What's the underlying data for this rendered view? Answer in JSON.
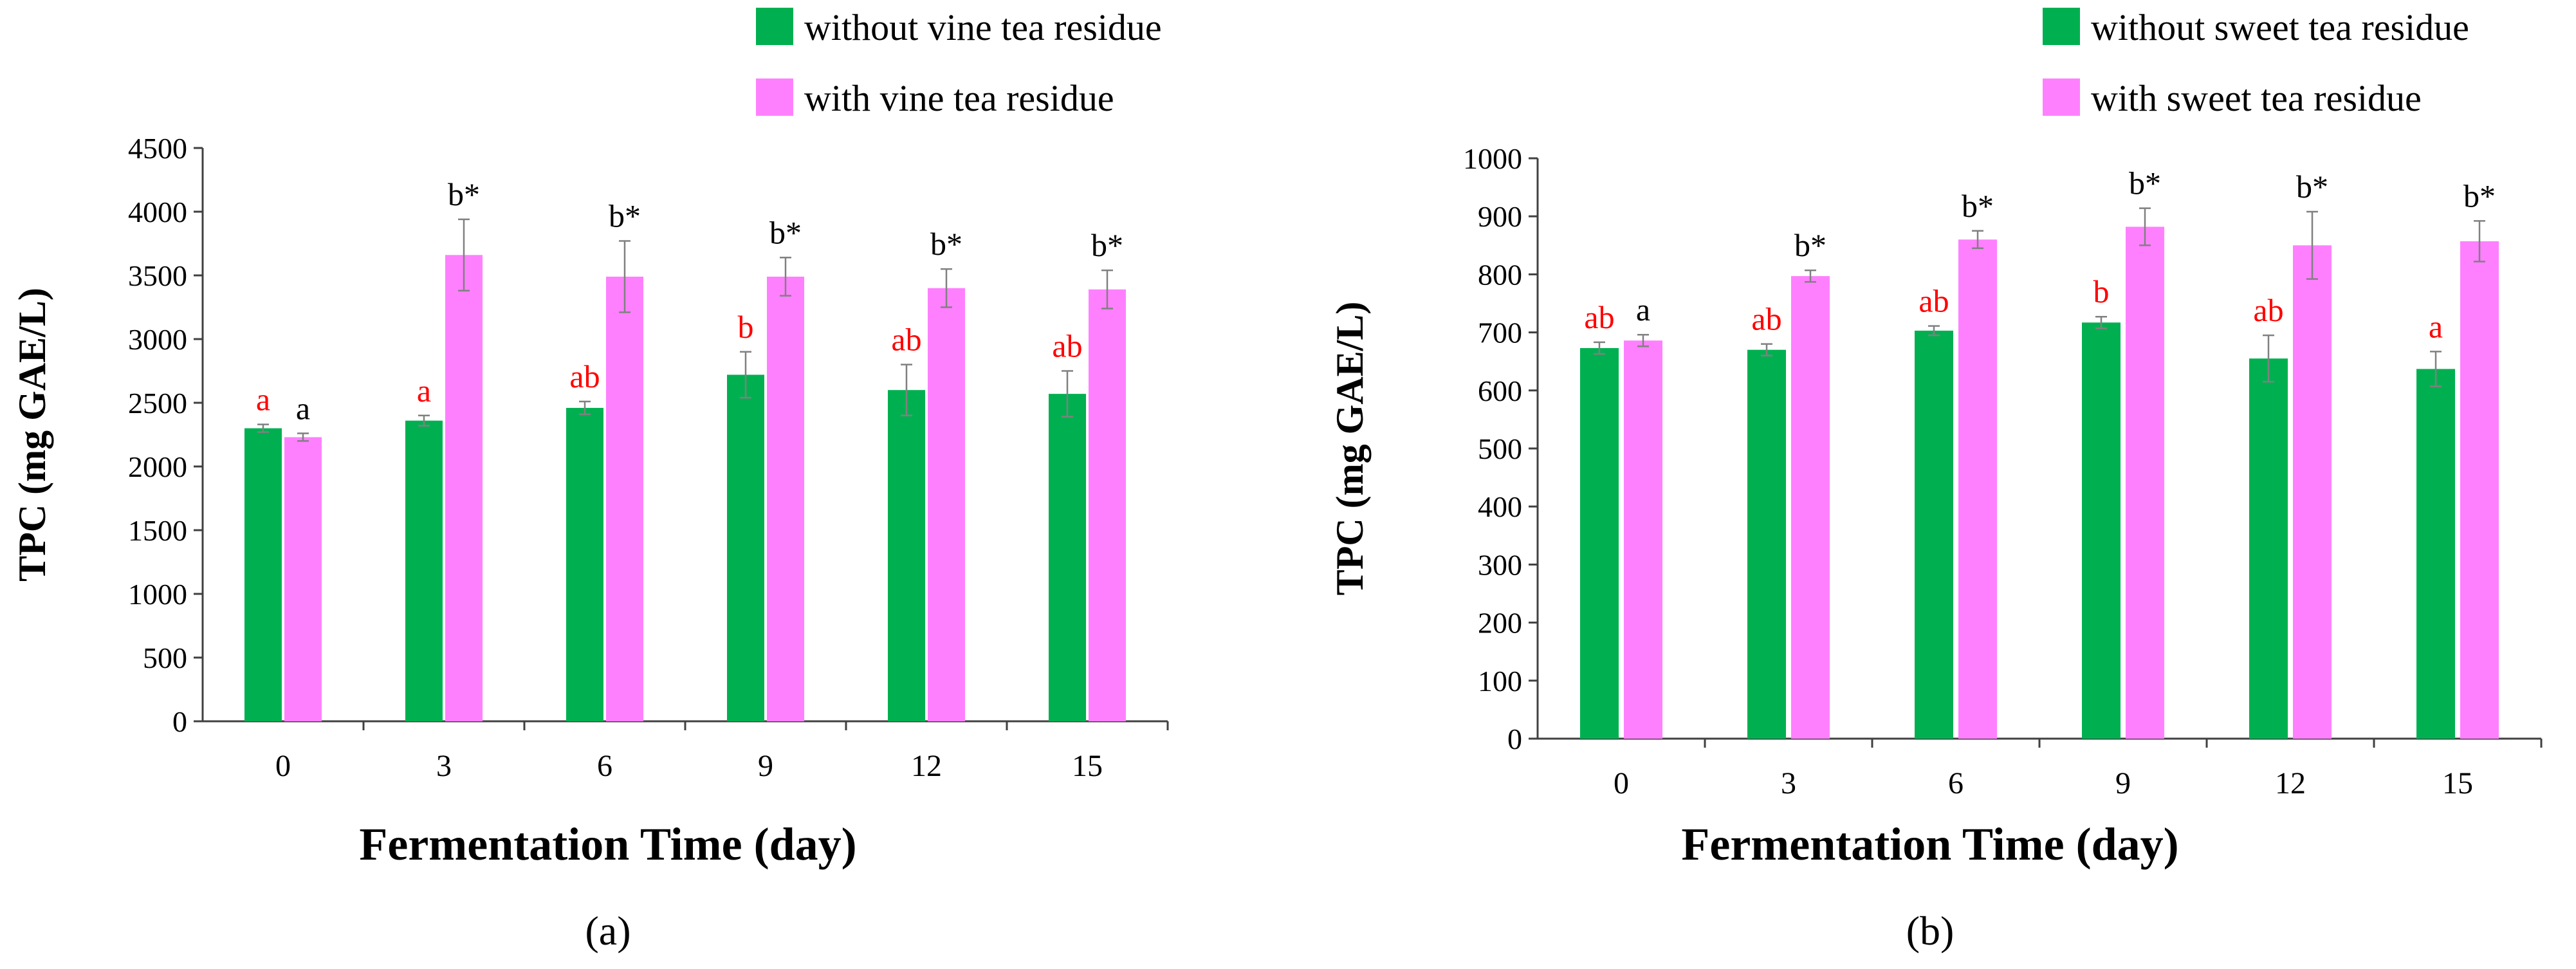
{
  "colors": {
    "series1": "#00B050",
    "series2": "#FF80FF",
    "sig_red": "#FF0000",
    "sig_black": "#000000",
    "axis": "#404040",
    "error": "#808080"
  },
  "chart_data": [
    {
      "type": "bar",
      "panel_label": "(a)",
      "xlabel": "Fermentation Time (day)",
      "ylabel": "TPC (mg GAE/L)",
      "ylim": [
        0,
        4500
      ],
      "yticks": [
        0,
        500,
        1000,
        1500,
        2000,
        2500,
        3000,
        3500,
        4000,
        4500
      ],
      "categories": [
        "0",
        "3",
        "6",
        "9",
        "12",
        "15"
      ],
      "legend_position": "top-right",
      "series": [
        {
          "name": "without vine tea residue",
          "color": "#00B050",
          "values": [
            2300,
            2360,
            2460,
            2720,
            2600,
            2570
          ],
          "errors": [
            30,
            40,
            50,
            180,
            200,
            180
          ],
          "labels": [
            "a",
            "a",
            "ab",
            "b",
            "ab",
            "ab"
          ]
        },
        {
          "name": "with vine tea residue",
          "color": "#FF80FF",
          "values": [
            2230,
            3660,
            3490,
            3490,
            3400,
            3390
          ],
          "errors": [
            30,
            280,
            280,
            150,
            150,
            150
          ],
          "labels": [
            "a",
            "b*",
            "b*",
            "b*",
            "b*",
            "b*"
          ]
        }
      ]
    },
    {
      "type": "bar",
      "panel_label": "(b)",
      "xlabel": "Fermentation Time (day)",
      "ylabel": "TPC (mg GAE/L)",
      "ylim": [
        0,
        1000
      ],
      "yticks": [
        0,
        100,
        200,
        300,
        400,
        500,
        600,
        700,
        800,
        900,
        1000
      ],
      "categories": [
        "0",
        "3",
        "6",
        "9",
        "12",
        "15"
      ],
      "legend_position": "top-right",
      "series": [
        {
          "name": "without sweet tea residue",
          "color": "#00B050",
          "values": [
            673,
            670,
            703,
            717,
            655,
            637
          ],
          "errors": [
            10,
            10,
            8,
            10,
            40,
            30
          ],
          "labels": [
            "ab",
            "ab",
            "ab",
            "b",
            "ab",
            "a"
          ]
        },
        {
          "name": "with sweet tea residue",
          "color": "#FF80FF",
          "values": [
            686,
            797,
            860,
            882,
            850,
            857
          ],
          "errors": [
            10,
            10,
            15,
            32,
            58,
            35
          ],
          "labels": [
            "a",
            "b*",
            "b*",
            "b*",
            "b*",
            "b*"
          ]
        }
      ]
    }
  ]
}
